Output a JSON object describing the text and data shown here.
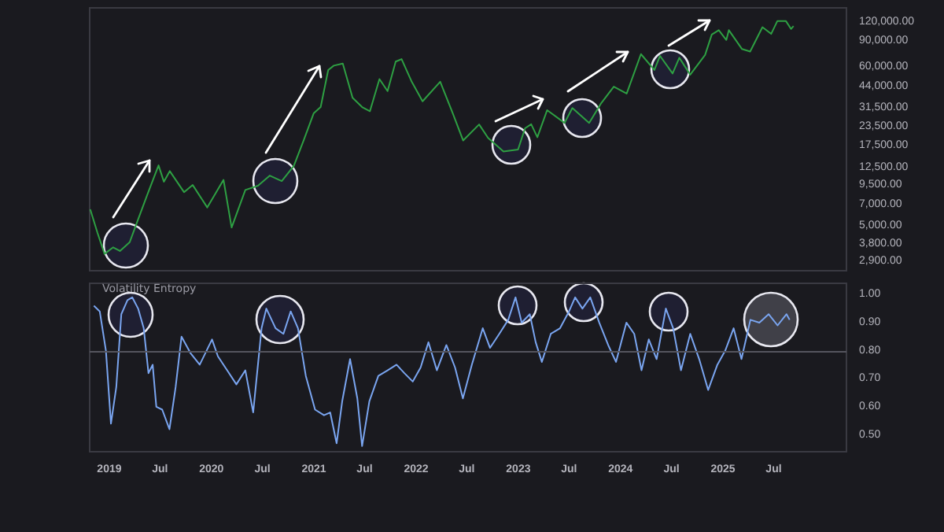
{
  "chart_data": [
    {
      "type": "line",
      "log": true,
      "tick_labels": "y",
      "x": [
        "2018-10-25",
        "2018-11-20",
        "2018-12-15",
        "2019-01-15",
        "2019-02-08",
        "2019-03-15",
        "2019-04-05",
        "2019-05-15",
        "2019-06-26",
        "2019-07-15",
        "2019-08-05",
        "2019-09-25",
        "2019-10-26",
        "2019-12-17",
        "2020-02-13",
        "2020-03-13",
        "2020-05-01",
        "2020-06-15",
        "2020-07-27",
        "2020-09-08",
        "2020-10-21",
        "2020-11-25",
        "2020-12-31",
        "2021-01-25",
        "2021-02-21",
        "2021-03-13",
        "2021-04-14",
        "2021-05-19",
        "2021-06-22",
        "2021-07-20",
        "2021-08-23",
        "2021-09-21",
        "2021-10-20",
        "2021-11-10",
        "2021-12-15",
        "2022-01-24",
        "2022-03-28",
        "2022-05-12",
        "2022-06-18",
        "2022-08-14",
        "2022-09-15",
        "2022-11-09",
        "2022-12-31",
        "2023-01-25",
        "2023-02-16",
        "2023-03-10",
        "2023-04-14",
        "2023-06-15",
        "2023-07-13",
        "2023-09-11",
        "2023-10-24",
        "2023-12-08",
        "2024-01-23",
        "2024-03-14",
        "2024-05-01",
        "2024-05-21",
        "2024-07-05",
        "2024-07-29",
        "2024-09-06",
        "2024-10-29",
        "2024-11-22",
        "2024-12-17",
        "2025-01-13",
        "2025-01-22",
        "2025-03-10",
        "2025-04-08",
        "2025-05-22",
        "2025-06-22",
        "2025-07-14",
        "2025-08-14",
        "2025-09-01",
        "2025-09-10"
      ],
      "series": [
        {
          "color": "#2ea043",
          "values": [
            6500,
            4500,
            3250,
            3600,
            3400,
            3900,
            5000,
            8000,
            12900,
            10000,
            11800,
            8500,
            9500,
            6700,
            10300,
            4900,
            8800,
            9400,
            11000,
            10100,
            12800,
            19000,
            29000,
            32000,
            57000,
            61000,
            63000,
            37000,
            32000,
            30000,
            49500,
            41000,
            65000,
            67500,
            48000,
            35000,
            47500,
            29000,
            19000,
            24400,
            19800,
            16000,
            16500,
            23000,
            24500,
            20000,
            30500,
            25000,
            31500,
            25000,
            34000,
            44000,
            39500,
            73000,
            57000,
            71000,
            54000,
            69000,
            53000,
            72000,
            99000,
            106000,
            91000,
            106000,
            79000,
            76000,
            111000,
            100000,
            122000,
            122000,
            108000,
            113000
          ]
        }
      ],
      "xlim": [
        "2018-10-23",
        "2026-03-18"
      ],
      "ylim": [
        2500,
        150000
      ],
      "yticks": [
        {
          "value": 120000,
          "label": "120,000.00"
        },
        {
          "value": 90000,
          "label": "90,000.00"
        },
        {
          "value": 60000,
          "label": "60,000.00"
        },
        {
          "value": 44000,
          "label": "44,000.00"
        },
        {
          "value": 31500,
          "label": "31,500.00"
        },
        {
          "value": 23500,
          "label": "23,500.00"
        },
        {
          "value": 17500,
          "label": "17,500.00"
        },
        {
          "value": 12500,
          "label": "12,500.00"
        },
        {
          "value": 9500,
          "label": "9,500.00"
        },
        {
          "value": 7000,
          "label": "7,000.00"
        },
        {
          "value": 5000,
          "label": "5,000.00"
        },
        {
          "value": 3800,
          "label": "3,800.00"
        },
        {
          "value": 2900,
          "label": "2,900.00"
        }
      ]
    },
    {
      "type": "line",
      "title": "Volatility Entropy",
      "x": [
        "2018-11-07",
        "2018-11-28",
        "2018-12-20",
        "2019-01-07",
        "2019-01-26",
        "2019-02-13",
        "2019-03-07",
        "2019-03-24",
        "2019-04-14",
        "2019-05-04",
        "2019-05-21",
        "2019-06-05",
        "2019-06-18",
        "2019-07-09",
        "2019-08-04",
        "2019-08-26",
        "2019-09-16",
        "2019-10-19",
        "2019-11-20",
        "2020-01-03",
        "2020-01-24",
        "2020-02-26",
        "2020-03-30",
        "2020-05-01",
        "2020-05-29",
        "2020-06-28",
        "2020-07-15",
        "2020-08-17",
        "2020-09-14",
        "2020-10-10",
        "2020-11-05",
        "2020-12-03",
        "2021-01-05",
        "2021-02-06",
        "2021-02-28",
        "2021-03-23",
        "2021-04-12",
        "2021-05-10",
        "2021-06-05",
        "2021-06-22",
        "2021-07-18",
        "2021-08-19",
        "2021-09-21",
        "2021-10-23",
        "2021-11-20",
        "2021-12-20",
        "2022-01-17",
        "2022-02-14",
        "2022-03-16",
        "2022-04-19",
        "2022-05-20",
        "2022-06-17",
        "2022-07-19",
        "2022-08-27",
        "2022-09-22",
        "2022-10-25",
        "2022-11-26",
        "2022-12-22",
        "2023-01-13",
        "2023-02-11",
        "2023-03-04",
        "2023-03-26",
        "2023-04-27",
        "2023-05-30",
        "2023-07-01",
        "2023-07-23",
        "2023-08-18",
        "2023-09-15",
        "2023-10-17",
        "2023-11-18",
        "2023-12-16",
        "2024-01-22",
        "2024-02-19",
        "2024-03-16",
        "2024-04-11",
        "2024-05-09",
        "2024-06-11",
        "2024-07-07",
        "2024-08-04",
        "2024-09-06",
        "2024-10-08",
        "2024-11-09",
        "2024-12-12",
        "2025-01-09",
        "2025-02-08",
        "2025-03-08",
        "2025-04-09",
        "2025-05-11",
        "2025-06-13",
        "2025-07-15",
        "2025-08-16",
        "2025-08-27"
      ],
      "series": [
        {
          "color": "#7aa5f0",
          "values": [
            0.96,
            0.94,
            0.8,
            0.54,
            0.67,
            0.93,
            0.98,
            0.99,
            0.95,
            0.88,
            0.72,
            0.75,
            0.6,
            0.59,
            0.52,
            0.67,
            0.85,
            0.79,
            0.75,
            0.84,
            0.78,
            0.73,
            0.68,
            0.73,
            0.58,
            0.88,
            0.95,
            0.88,
            0.86,
            0.94,
            0.88,
            0.71,
            0.59,
            0.57,
            0.58,
            0.47,
            0.62,
            0.77,
            0.63,
            0.46,
            0.62,
            0.71,
            0.73,
            0.75,
            0.72,
            0.69,
            0.74,
            0.83,
            0.73,
            0.82,
            0.74,
            0.63,
            0.75,
            0.88,
            0.81,
            0.86,
            0.91,
            0.99,
            0.9,
            0.93,
            0.83,
            0.76,
            0.86,
            0.88,
            0.94,
            0.99,
            0.95,
            0.99,
            0.9,
            0.82,
            0.76,
            0.9,
            0.86,
            0.73,
            0.84,
            0.77,
            0.95,
            0.88,
            0.73,
            0.86,
            0.77,
            0.66,
            0.75,
            0.8,
            0.88,
            0.77,
            0.91,
            0.9,
            0.93,
            0.89,
            0.93,
            0.91
          ]
        }
      ],
      "xlim": [
        "2018-10-23",
        "2026-03-18"
      ],
      "xticks": [
        {
          "value": "2019-01",
          "label": "2019"
        },
        {
          "value": "2019-07",
          "label": "Jul"
        },
        {
          "value": "2020-01",
          "label": "2020"
        },
        {
          "value": "2020-07",
          "label": "Jul"
        },
        {
          "value": "2021-01",
          "label": "2021"
        },
        {
          "value": "2021-07",
          "label": "Jul"
        },
        {
          "value": "2022-01",
          "label": "2022"
        },
        {
          "value": "2022-07",
          "label": "Jul"
        },
        {
          "value": "2023-01",
          "label": "2023"
        },
        {
          "value": "2023-07",
          "label": "Jul"
        },
        {
          "value": "2024-01",
          "label": "2024"
        },
        {
          "value": "2024-07",
          "label": "Jul"
        },
        {
          "value": "2025-01",
          "label": "2025"
        },
        {
          "value": "2025-07",
          "label": "Jul"
        }
      ],
      "ylim": [
        0.44,
        1.04
      ],
      "yticks": [
        {
          "value": 0.5,
          "label": "0.50"
        },
        {
          "value": 0.6,
          "label": "0.60"
        },
        {
          "value": 0.7,
          "label": "0.70"
        },
        {
          "value": 0.8,
          "label": "0.80"
        },
        {
          "value": 0.9,
          "label": "0.90"
        },
        {
          "value": 1,
          "label": "1.00"
        }
      ],
      "ref_lines": [
        {
          "axis": "y",
          "value": 0.8,
          "color": "#55555e"
        }
      ]
    }
  ]
}
